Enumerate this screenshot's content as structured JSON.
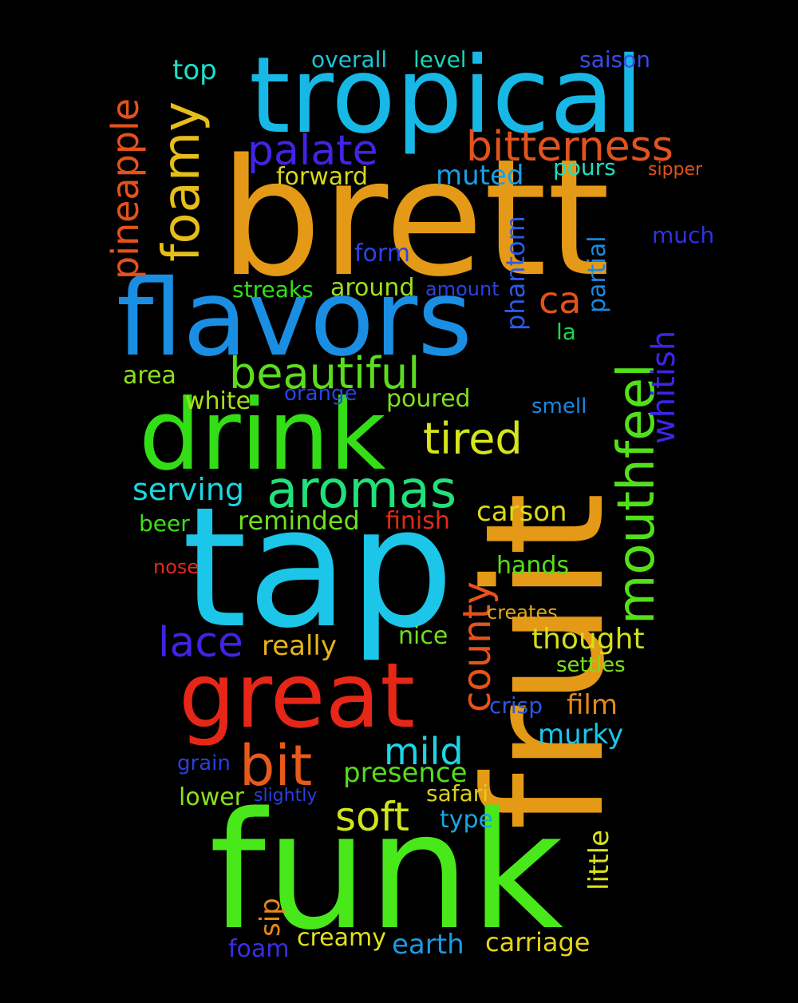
{
  "words": [
    {
      "text": "brett",
      "color": "#e49a16"
    },
    {
      "text": "fruit",
      "color": "#e49a16"
    },
    {
      "text": "tap",
      "color": "#1cc6e8"
    },
    {
      "text": "funk",
      "color": "#48e81a"
    },
    {
      "text": "tropical",
      "color": "#18b8e6"
    },
    {
      "text": "flavors",
      "color": "#1a8ee3"
    },
    {
      "text": "drink",
      "color": "#34de16"
    },
    {
      "text": "great",
      "color": "#e62718"
    },
    {
      "text": "mouthfeel",
      "color": "#52e01a"
    },
    {
      "text": "aromas",
      "color": "#22e07a"
    },
    {
      "text": "beautiful",
      "color": "#5cdc1e"
    },
    {
      "text": "bitterness",
      "color": "#e2531e"
    },
    {
      "text": "foamy",
      "color": "#e6be1a"
    },
    {
      "text": "pineapple",
      "color": "#e4521c"
    },
    {
      "text": "palate",
      "color": "#4224e6"
    },
    {
      "text": "bit",
      "color": "#e85a1c"
    },
    {
      "text": "tired",
      "color": "#d6e41e"
    },
    {
      "text": "lace",
      "color": "#3e24e4"
    },
    {
      "text": "county",
      "color": "#e8521a"
    },
    {
      "text": "soft",
      "color": "#cfe41c"
    },
    {
      "text": "mild",
      "color": "#1cd6e8"
    },
    {
      "text": "whitish",
      "color": "#3a26e6"
    },
    {
      "text": "serving",
      "color": "#1cd6e0"
    },
    {
      "text": "ca",
      "color": "#e4521c"
    },
    {
      "text": "top",
      "color": "#1ce0c8"
    },
    {
      "text": "overall",
      "color": "#1cc4d4"
    },
    {
      "text": "level",
      "color": "#1cd2b8"
    },
    {
      "text": "saison",
      "color": "#3a4ce6"
    },
    {
      "text": "muted",
      "color": "#1a9ee2"
    },
    {
      "text": "pours",
      "color": "#1ce0c2"
    },
    {
      "text": "sipper",
      "color": "#e2521a"
    },
    {
      "text": "forward",
      "color": "#d8d81a"
    },
    {
      "text": "phantom",
      "color": "#2c5ae8"
    },
    {
      "text": "partial",
      "color": "#1a8ae0"
    },
    {
      "text": "much",
      "color": "#2c34e2"
    },
    {
      "text": "form",
      "color": "#2c42e4"
    },
    {
      "text": "streaks",
      "color": "#36de1c"
    },
    {
      "text": "around",
      "color": "#9ee01c"
    },
    {
      "text": "amount",
      "color": "#2c42e4"
    },
    {
      "text": "la",
      "color": "#1ed64a"
    },
    {
      "text": "area",
      "color": "#8ee01c"
    },
    {
      "text": "white",
      "color": "#a4e01c"
    },
    {
      "text": "orange",
      "color": "#2c42e4"
    },
    {
      "text": "poured",
      "color": "#7ee01c"
    },
    {
      "text": "smell",
      "color": "#1a88e0"
    },
    {
      "text": "carson",
      "color": "#dcd81a"
    },
    {
      "text": "beer",
      "color": "#3ede1c"
    },
    {
      "text": "reminded",
      "color": "#6ee01c"
    },
    {
      "text": "finish",
      "color": "#e22a18"
    },
    {
      "text": "nose",
      "color": "#e22a18"
    },
    {
      "text": "hands",
      "color": "#56de1c"
    },
    {
      "text": "creates",
      "color": "#e2a81a"
    },
    {
      "text": "really",
      "color": "#e6b41a"
    },
    {
      "text": "nice",
      "color": "#72de1c"
    },
    {
      "text": "thought",
      "color": "#d2e01c"
    },
    {
      "text": "settles",
      "color": "#7ee01c"
    },
    {
      "text": "crisp",
      "color": "#2c56e2"
    },
    {
      "text": "film",
      "color": "#e6881a"
    },
    {
      "text": "murky",
      "color": "#1ac6e6"
    },
    {
      "text": "grain",
      "color": "#2c3ee2"
    },
    {
      "text": "presence",
      "color": "#56dc1c"
    },
    {
      "text": "lower",
      "color": "#8ee01c"
    },
    {
      "text": "slightly",
      "color": "#2c3ee2"
    },
    {
      "text": "safari",
      "color": "#dad21c"
    },
    {
      "text": "type",
      "color": "#1aa6e0"
    },
    {
      "text": "little",
      "color": "#dce01c"
    },
    {
      "text": "sip",
      "color": "#e6881a"
    },
    {
      "text": "creamy",
      "color": "#e2e01c"
    },
    {
      "text": "carriage",
      "color": "#e6d41a"
    },
    {
      "text": "earth",
      "color": "#1c9ae2"
    },
    {
      "text": "foam",
      "color": "#3a2ee4"
    }
  ]
}
